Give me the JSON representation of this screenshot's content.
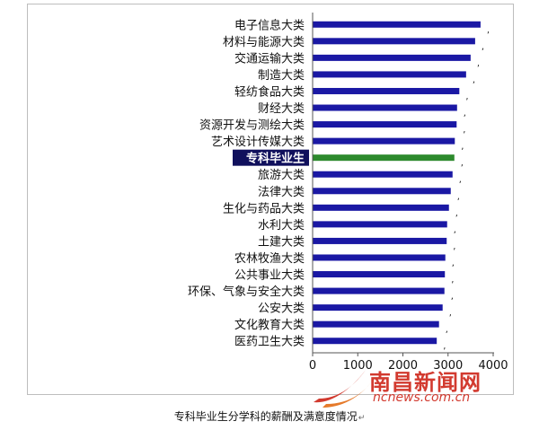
{
  "chart_data": {
    "type": "bar",
    "orientation": "horizontal",
    "categories": [
      "电子信息大类",
      "材料与能源大类",
      "交通运输大类",
      "制造大类",
      "轻纺食品大类",
      "财经大类",
      "资源开发与测绘大类",
      "艺术设计传媒大类",
      "专科毕业生",
      "旅游大类",
      "法律大类",
      "生化与药品大类",
      "水利大类",
      "土建大类",
      "农林牧渔大类",
      "公共事业大类",
      "环保、气象与安全大类",
      "公安大类",
      "文化教育大类",
      "医药卫生大类"
    ],
    "values": [
      3720,
      3600,
      3500,
      3400,
      3250,
      3200,
      3190,
      3150,
      3140,
      3100,
      3060,
      3020,
      2980,
      2970,
      2940,
      2930,
      2920,
      2880,
      2800,
      2750
    ],
    "highlight_category": "专科毕业生",
    "x_ticks": [
      0,
      1000,
      2000,
      3000,
      4000
    ],
    "xlim": [
      0,
      4000
    ],
    "title": "",
    "xlabel": "",
    "ylabel": "",
    "grid": false,
    "data_labels": ",",
    "colors": {
      "bar": "#1a18a4",
      "highlight_bar": "#2d8a2d",
      "highlight_label_bg": "#10105c",
      "highlight_label_text": "#ffffff",
      "axis": "#555555"
    }
  },
  "caption": {
    "text": "专科毕业生分学科的薪酬及满意度情况",
    "mark": "↵"
  },
  "watermark": {
    "name": "南昌新闻网",
    "url": "ncnews.com.cn",
    "icon": "swoosh-logo",
    "color": "#d23a2f"
  }
}
